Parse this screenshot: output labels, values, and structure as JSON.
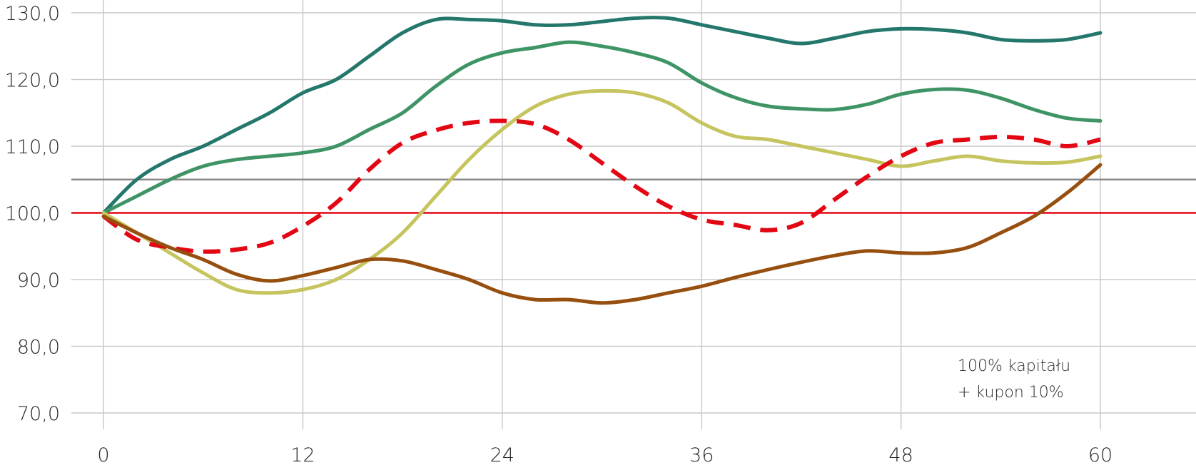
{
  "chart_data": {
    "type": "line",
    "xlim": [
      0,
      60
    ],
    "ylim": [
      70,
      130
    ],
    "x_ticks": [
      0,
      12,
      24,
      36,
      48,
      60
    ],
    "x_tick_labels": [
      "0",
      "12",
      "24",
      "36",
      "48",
      "60"
    ],
    "y_ticks": [
      70,
      80,
      90,
      100,
      110,
      120,
      130
    ],
    "y_tick_labels": [
      "70,0",
      "80,0",
      "90,0",
      "100,0",
      "110,0",
      "120,0",
      "130,0"
    ],
    "grid": true,
    "reference_lines": [
      {
        "y": 105,
        "color": "#8a8a8a"
      },
      {
        "y": 100,
        "color": "#e30613"
      }
    ],
    "annotation": [
      "100% kapitału",
      "+ kupon 10%"
    ],
    "series": [
      {
        "color": "#24776b",
        "style": "solid",
        "x": [
          0,
          2,
          4,
          6,
          8,
          10,
          12,
          14,
          16,
          18,
          20,
          22,
          24,
          26,
          28,
          30,
          32,
          34,
          36,
          38,
          40,
          42,
          44,
          46,
          48,
          50,
          52,
          54,
          56,
          58,
          60
        ],
        "y": [
          100,
          105,
          108,
          110,
          112.5,
          115,
          118,
          120,
          123.5,
          127,
          129,
          129,
          128.8,
          128.2,
          128.2,
          128.7,
          129.2,
          129.2,
          128.2,
          127.2,
          126.2,
          125.4,
          126.2,
          127.2,
          127.6,
          127.5,
          127,
          126,
          125.8,
          126,
          127
        ]
      },
      {
        "color": "#3f9466",
        "style": "solid",
        "x": [
          0,
          2,
          4,
          6,
          8,
          10,
          12,
          14,
          16,
          18,
          20,
          22,
          24,
          26,
          28,
          30,
          32,
          34,
          36,
          38,
          40,
          42,
          44,
          46,
          48,
          50,
          52,
          54,
          56,
          58,
          60
        ],
        "y": [
          100,
          102.5,
          105,
          107,
          108,
          108.5,
          109,
          110,
          112.5,
          115,
          119,
          122.3,
          124,
          124.8,
          125.6,
          125,
          124,
          122.5,
          119.5,
          117.3,
          116,
          115.6,
          115.5,
          116.3,
          117.8,
          118.5,
          118.4,
          117.2,
          115.5,
          114.2,
          113.8
        ]
      },
      {
        "color": "#c6c45e",
        "style": "solid",
        "x": [
          0,
          2,
          4,
          6,
          8,
          10,
          12,
          14,
          16,
          18,
          20,
          22,
          24,
          26,
          28,
          30,
          32,
          34,
          36,
          38,
          40,
          42,
          44,
          46,
          48,
          50,
          52,
          54,
          56,
          58,
          60
        ],
        "y": [
          100,
          97,
          94,
          91,
          88.5,
          88,
          88.5,
          90,
          93,
          97,
          102.5,
          108,
          112.5,
          116,
          117.8,
          118.3,
          118,
          116.5,
          113.5,
          111.5,
          111,
          110,
          109,
          108,
          107,
          107.8,
          108.5,
          107.8,
          107.5,
          107.6,
          108.5
        ]
      },
      {
        "color": "#e30613",
        "style": "dashed",
        "x": [
          0,
          2,
          4,
          6,
          8,
          10,
          12,
          14,
          16,
          18,
          20,
          22,
          24,
          26,
          28,
          30,
          32,
          34,
          36,
          38,
          40,
          42,
          44,
          46,
          48,
          50,
          52,
          54,
          56,
          58,
          60
        ],
        "y": [
          99.5,
          96,
          94.8,
          94.2,
          94.5,
          95.5,
          98,
          101.5,
          106.5,
          110.5,
          112.4,
          113.5,
          113.8,
          113.3,
          111,
          107.5,
          104,
          101,
          99,
          98.2,
          97.4,
          98.5,
          102,
          105.5,
          108.5,
          110.5,
          111,
          111.4,
          111,
          110,
          111
        ]
      },
      {
        "color": "#974f0f",
        "style": "solid",
        "x": [
          0,
          2,
          4,
          6,
          8,
          10,
          12,
          14,
          16,
          18,
          20,
          22,
          24,
          26,
          28,
          30,
          32,
          34,
          36,
          38,
          40,
          42,
          44,
          46,
          48,
          50,
          52,
          54,
          56,
          58,
          60
        ],
        "y": [
          99.5,
          97,
          94.8,
          93,
          90.8,
          89.8,
          90.6,
          91.8,
          93,
          92.8,
          91.5,
          90,
          88,
          87,
          87,
          86.5,
          87,
          88,
          89,
          90.3,
          91.5,
          92.6,
          93.6,
          94.3,
          94,
          94,
          94.8,
          97,
          99.5,
          103,
          107.2
        ]
      }
    ]
  }
}
